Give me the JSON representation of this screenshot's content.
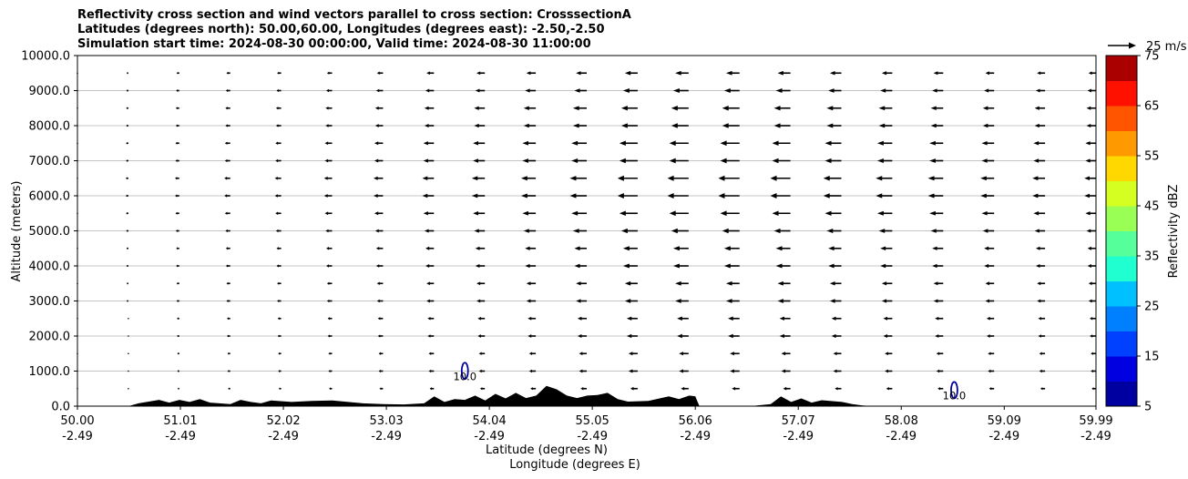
{
  "chart_data": {
    "type": "cross-section",
    "title": [
      "Reflectivity cross section and wind vectors parallel to cross section: CrosssectionA",
      "Latitudes (degrees north): 50.00,60.00, Longitudes (degrees east): -2.50,-2.50",
      "Simulation start time: 2024-08-30 00:00:00, Valid time: 2024-08-30 11:00:00"
    ],
    "ylabel": "Altitude (meters)",
    "xlabel": "Latitude (degrees N)",
    "xlabel2": "Longitude (degrees E)",
    "ylim": [
      0,
      10000
    ],
    "yticks": [
      "0.0",
      "1000.0",
      "2000.0",
      "3000.0",
      "4000.0",
      "5000.0",
      "6000.0",
      "7000.0",
      "8000.0",
      "9000.0",
      "10000.0"
    ],
    "xlim": [
      50.0,
      59.99
    ],
    "xticks": [
      {
        "lat": "50.00",
        "lon": "-2.49"
      },
      {
        "lat": "51.01",
        "lon": "-2.49"
      },
      {
        "lat": "52.02",
        "lon": "-2.49"
      },
      {
        "lat": "53.03",
        "lon": "-2.49"
      },
      {
        "lat": "54.04",
        "lon": "-2.49"
      },
      {
        "lat": "55.05",
        "lon": "-2.49"
      },
      {
        "lat": "56.06",
        "lon": "-2.49"
      },
      {
        "lat": "57.07",
        "lon": "-2.49"
      },
      {
        "lat": "58.08",
        "lon": "-2.49"
      },
      {
        "lat": "59.09",
        "lon": "-2.49"
      },
      {
        "lat": "59.99",
        "lon": "-2.49"
      }
    ],
    "grid": "horizontal",
    "quiver_key": {
      "label": "25 m/s",
      "speed": 25
    },
    "colorbar": {
      "label": "Reflectivity dBZ",
      "ticks": [
        "5",
        "15",
        "25",
        "35",
        "45",
        "55",
        "65",
        "75"
      ],
      "levels": [
        5,
        10,
        15,
        20,
        25,
        30,
        35,
        40,
        45,
        50,
        55,
        60,
        65,
        70,
        75
      ],
      "colors": [
        "#0000a0",
        "#0000e0",
        "#0040ff",
        "#0080ff",
        "#00c0ff",
        "#20ffd0",
        "#55ff99",
        "#99ff55",
        "#d4ff20",
        "#ffd800",
        "#ff9900",
        "#ff5500",
        "#ff1100",
        "#aa0000"
      ]
    },
    "terrain": {
      "x": [
        50.0,
        50.5,
        50.6,
        50.8,
        50.9,
        51.0,
        51.1,
        51.2,
        51.3,
        51.5,
        51.6,
        51.7,
        51.8,
        51.9,
        52.1,
        52.3,
        52.5,
        52.8,
        53.0,
        53.2,
        53.4,
        53.5,
        53.6,
        53.7,
        53.8,
        53.9,
        54.0,
        54.1,
        54.2,
        54.3,
        54.4,
        54.5,
        54.6,
        54.7,
        54.8,
        54.9,
        55.0,
        55.1,
        55.2,
        55.3,
        55.4,
        55.6,
        55.8,
        55.9,
        56.0,
        56.06,
        56.1,
        56.3,
        56.6,
        56.8,
        56.9,
        57.0,
        57.1,
        57.2,
        57.3,
        57.5,
        57.6,
        57.7,
        57.8,
        59.99
      ],
      "y": [
        0,
        0,
        80,
        180,
        100,
        180,
        120,
        200,
        100,
        60,
        180,
        120,
        80,
        160,
        120,
        150,
        160,
        80,
        60,
        50,
        80,
        280,
        120,
        200,
        180,
        300,
        160,
        350,
        220,
        380,
        230,
        300,
        580,
        480,
        300,
        230,
        300,
        320,
        380,
        200,
        130,
        150,
        280,
        200,
        300,
        280,
        0,
        0,
        0,
        60,
        280,
        120,
        220,
        100,
        170,
        120,
        60,
        20,
        0,
        0
      ]
    },
    "reflectivity_contours": [
      {
        "x": 53.8,
        "y": 850,
        "level": "10.0",
        "color": "#0000a0"
      },
      {
        "x": 58.6,
        "y": 300,
        "level": "10.0",
        "color": "#0000a0"
      }
    ],
    "wind_u_profile": {
      "x": [
        50.0,
        50.5,
        51.0,
        51.5,
        52.0,
        52.5,
        53.0,
        53.5,
        54.0,
        54.5,
        55.0,
        55.5,
        56.0,
        56.5,
        57.0,
        57.5,
        58.0,
        58.5,
        59.0,
        59.5,
        59.99
      ],
      "scale": [
        0.02,
        0.12,
        0.2,
        0.28,
        0.3,
        0.38,
        0.45,
        0.55,
        0.62,
        0.7,
        0.8,
        0.95,
        1.0,
        1.0,
        0.95,
        0.85,
        0.78,
        0.72,
        0.65,
        0.6,
        0.55
      ]
    },
    "wind_u_vertical": {
      "altitude": [
        500,
        1000,
        1500,
        2000,
        2500,
        3000,
        3500,
        4000,
        4500,
        5000,
        5500,
        6000,
        6500,
        7000,
        7500,
        8000,
        8500,
        9000,
        9500
      ],
      "speed": [
        -4,
        -5,
        -5,
        -6,
        -6,
        -7,
        -7,
        -8,
        -8,
        -9,
        -10,
        -11,
        -11,
        -10,
        -10,
        -9,
        -9,
        -8,
        -7
      ]
    }
  }
}
